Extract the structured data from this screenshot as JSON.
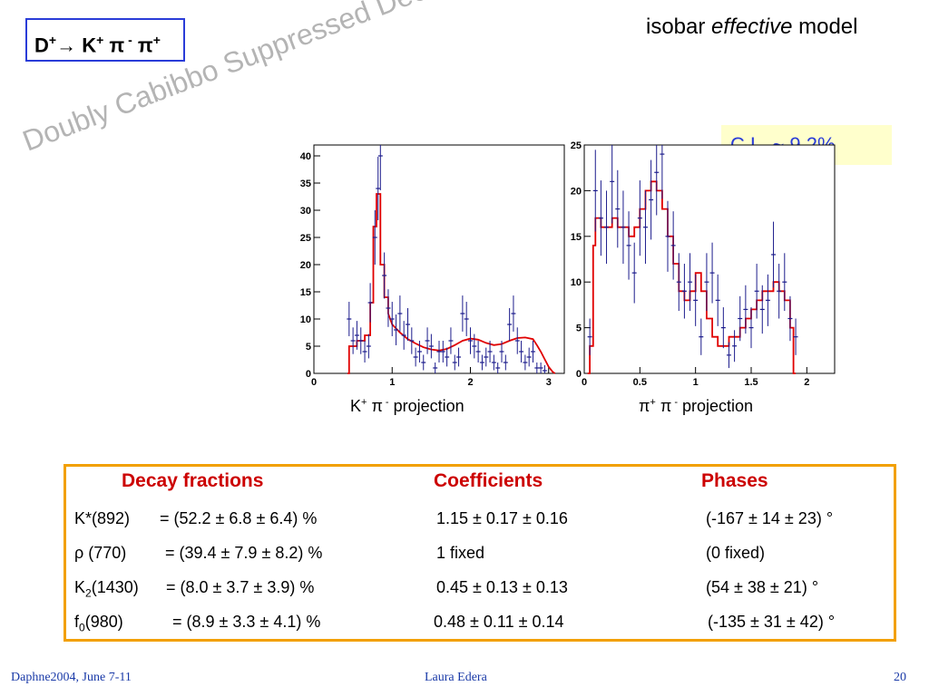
{
  "slide": {
    "decay_box": {
      "D": "D",
      "Dsup": "+",
      "arrow": "→",
      "K": " K",
      "Ksup": "+",
      "pim": " π",
      "pimsup": " -",
      "pip": " π",
      "pipsup": "+"
    },
    "model_title": {
      "pre": "isobar ",
      "em": "effective",
      "post": " model"
    },
    "watermark": "Doubly Cabibbo Suppressed Decay",
    "cl_box": "C.L.  ~ 9.2%",
    "projections": {
      "left": {
        "p1": "K",
        "s1": "+",
        "p2": " π",
        "s2": " -",
        "p3": " projection"
      },
      "right": {
        "p1": "π",
        "s1": "+",
        "p2": " π",
        "s2": " -",
        "p3": "  projection"
      }
    },
    "results": {
      "headers": [
        "Decay fractions",
        "Coefficients",
        "Phases"
      ],
      "rows": [
        {
          "name": "K*(892)",
          "name_sub": "",
          "name_post": "",
          "fraction": "= (52.2  ± 6.8 ± 6.4) %",
          "coefficient": "1.15 ± 0.17 ±  0.16",
          "phase": "(-167 ± 14 ± 23) °"
        },
        {
          "name": "ρ (770)",
          "name_sub": "",
          "name_post": "",
          "fraction": "= (39.4  ± 7.9 ±  8.2) %",
          "coefficient": "1 fixed",
          "phase": "(0 fixed)"
        },
        {
          "name": "K",
          "name_sub": "2",
          "name_post": "(1430)",
          "fraction": "=   (8.0  ± 3.7 ± 3.9) %",
          "coefficient": "0.45 ± 0.13 ± 0.13",
          "phase": "(54 ± 38 ± 21) °"
        },
        {
          "name": "f",
          "name_sub": "0",
          "name_post": "(980)",
          "fraction": "=  (8.9 ± 3.3 ± 4.1) %",
          "coefficient": "0.48 ± 0.11 ± 0.14",
          "phase": "(-135 ± 31 ± 42) °"
        }
      ]
    },
    "footer": {
      "left": "Daphne2004, June 7-11",
      "center": "Laura Edera",
      "right": "20"
    }
  },
  "colors": {
    "frame_blue": "#2a3cd8",
    "header_red": "#cc0000",
    "box_orange": "#f2a000",
    "fit_red": "#e00000",
    "points_blue": "#1c1c8c",
    "footer_blue": "#1a3aa8"
  },
  "chart_data": [
    {
      "type": "scatter",
      "xlim": [
        0,
        3.2
      ],
      "ylim": [
        0,
        42
      ],
      "xticks": [
        0,
        1,
        2,
        3
      ],
      "yticks": [
        0,
        5,
        10,
        15,
        20,
        25,
        30,
        35,
        40
      ],
      "xtick_labels": [
        "0",
        "1",
        "2",
        "3"
      ],
      "ytick_labels": [
        "0",
        "5",
        "10",
        "15",
        "20",
        "25",
        "30",
        "35",
        "40"
      ],
      "points": [
        [
          0.45,
          10
        ],
        [
          0.5,
          6
        ],
        [
          0.55,
          7
        ],
        [
          0.6,
          6
        ],
        [
          0.65,
          4
        ],
        [
          0.7,
          5
        ],
        [
          0.72,
          13
        ],
        [
          0.78,
          25
        ],
        [
          0.82,
          34
        ],
        [
          0.85,
          40
        ],
        [
          0.9,
          18
        ],
        [
          0.95,
          12
        ],
        [
          1.0,
          10
        ],
        [
          1.05,
          8
        ],
        [
          1.1,
          11
        ],
        [
          1.15,
          7
        ],
        [
          1.2,
          9
        ],
        [
          1.25,
          6
        ],
        [
          1.3,
          3
        ],
        [
          1.35,
          4
        ],
        [
          1.4,
          2
        ],
        [
          1.45,
          6
        ],
        [
          1.5,
          5
        ],
        [
          1.55,
          1
        ],
        [
          1.6,
          4
        ],
        [
          1.65,
          4
        ],
        [
          1.7,
          3
        ],
        [
          1.75,
          6
        ],
        [
          1.8,
          2
        ],
        [
          1.85,
          3
        ],
        [
          1.9,
          11
        ],
        [
          1.95,
          10
        ],
        [
          2.0,
          6
        ],
        [
          2.05,
          5
        ],
        [
          2.1,
          4
        ],
        [
          2.15,
          2
        ],
        [
          2.2,
          3
        ],
        [
          2.25,
          4
        ],
        [
          2.3,
          2
        ],
        [
          2.35,
          1
        ],
        [
          2.4,
          4
        ],
        [
          2.45,
          2
        ],
        [
          2.5,
          9
        ],
        [
          2.55,
          11
        ],
        [
          2.6,
          6
        ],
        [
          2.65,
          4
        ],
        [
          2.7,
          2
        ],
        [
          2.75,
          3
        ],
        [
          2.8,
          4
        ],
        [
          2.85,
          1
        ],
        [
          2.9,
          1
        ],
        [
          2.95,
          0.5
        ]
      ],
      "fit": [
        [
          0.43,
          0
        ],
        [
          0.45,
          0
        ],
        [
          0.45,
          5
        ],
        [
          0.55,
          5
        ],
        [
          0.55,
          6
        ],
        [
          0.65,
          6
        ],
        [
          0.65,
          7
        ],
        [
          0.72,
          7
        ],
        [
          0.72,
          13
        ],
        [
          0.76,
          13
        ],
        [
          0.76,
          27
        ],
        [
          0.8,
          27
        ],
        [
          0.8,
          33
        ],
        [
          0.85,
          33
        ],
        [
          0.85,
          20
        ],
        [
          0.9,
          20
        ],
        [
          0.9,
          14
        ],
        [
          0.95,
          14
        ],
        [
          0.95,
          11
        ],
        [
          1.0,
          9
        ],
        [
          1.1,
          7.5
        ],
        [
          1.2,
          6.3
        ],
        [
          1.3,
          5.5
        ],
        [
          1.4,
          4.8
        ],
        [
          1.5,
          4.4
        ],
        [
          1.6,
          4.2
        ],
        [
          1.7,
          4.5
        ],
        [
          1.8,
          5.2
        ],
        [
          1.9,
          6.0
        ],
        [
          2.0,
          6.4
        ],
        [
          2.1,
          6.2
        ],
        [
          2.2,
          5.6
        ],
        [
          2.3,
          5.2
        ],
        [
          2.4,
          5.4
        ],
        [
          2.5,
          6.0
        ],
        [
          2.6,
          6.5
        ],
        [
          2.7,
          6.6
        ],
        [
          2.8,
          6.3
        ],
        [
          2.85,
          5.2
        ],
        [
          2.9,
          4
        ],
        [
          2.95,
          2.6
        ],
        [
          3.0,
          1.2
        ],
        [
          3.05,
          0.3
        ],
        [
          3.08,
          0
        ]
      ]
    },
    {
      "type": "scatter",
      "xlim": [
        0,
        2.25
      ],
      "ylim": [
        0,
        25
      ],
      "xticks": [
        0,
        0.5,
        1,
        1.5,
        2
      ],
      "yticks": [
        0,
        5,
        10,
        15,
        20,
        25
      ],
      "xtick_labels": [
        "0",
        "0.5",
        "1",
        "1.5",
        "2"
      ],
      "ytick_labels": [
        "0",
        "5",
        "10",
        "15",
        "20",
        "25"
      ],
      "points": [
        [
          0.05,
          4
        ],
        [
          0.1,
          20
        ],
        [
          0.15,
          17
        ],
        [
          0.2,
          16
        ],
        [
          0.25,
          21
        ],
        [
          0.3,
          18
        ],
        [
          0.35,
          16
        ],
        [
          0.4,
          14
        ],
        [
          0.45,
          11
        ],
        [
          0.5,
          17
        ],
        [
          0.55,
          16
        ],
        [
          0.6,
          19
        ],
        [
          0.65,
          22
        ],
        [
          0.7,
          24
        ],
        [
          0.75,
          15
        ],
        [
          0.8,
          14
        ],
        [
          0.85,
          10
        ],
        [
          0.9,
          9
        ],
        [
          0.95,
          10
        ],
        [
          1.0,
          8
        ],
        [
          1.05,
          4
        ],
        [
          1.1,
          10
        ],
        [
          1.15,
          11
        ],
        [
          1.2,
          8
        ],
        [
          1.25,
          5
        ],
        [
          1.3,
          2
        ],
        [
          1.35,
          3
        ],
        [
          1.4,
          6
        ],
        [
          1.45,
          7
        ],
        [
          1.5,
          5
        ],
        [
          1.55,
          9
        ],
        [
          1.6,
          7
        ],
        [
          1.65,
          8
        ],
        [
          1.7,
          13
        ],
        [
          1.75,
          9
        ],
        [
          1.8,
          10
        ],
        [
          1.85,
          6
        ],
        [
          1.9,
          4
        ]
      ],
      "fit": [
        [
          0.03,
          0
        ],
        [
          0.05,
          0
        ],
        [
          0.05,
          3
        ],
        [
          0.08,
          3
        ],
        [
          0.08,
          14
        ],
        [
          0.1,
          14
        ],
        [
          0.1,
          17
        ],
        [
          0.15,
          17
        ],
        [
          0.15,
          16
        ],
        [
          0.25,
          16
        ],
        [
          0.25,
          17
        ],
        [
          0.3,
          17
        ],
        [
          0.3,
          16
        ],
        [
          0.4,
          16
        ],
        [
          0.4,
          15
        ],
        [
          0.45,
          15
        ],
        [
          0.45,
          16
        ],
        [
          0.5,
          16
        ],
        [
          0.5,
          18
        ],
        [
          0.55,
          18
        ],
        [
          0.55,
          20
        ],
        [
          0.6,
          20
        ],
        [
          0.6,
          21
        ],
        [
          0.65,
          21
        ],
        [
          0.65,
          20
        ],
        [
          0.7,
          20
        ],
        [
          0.7,
          18
        ],
        [
          0.75,
          18
        ],
        [
          0.75,
          15
        ],
        [
          0.8,
          15
        ],
        [
          0.8,
          12
        ],
        [
          0.85,
          12
        ],
        [
          0.85,
          9
        ],
        [
          0.9,
          9
        ],
        [
          0.9,
          8
        ],
        [
          0.95,
          8
        ],
        [
          0.95,
          9
        ],
        [
          1.0,
          9
        ],
        [
          1.0,
          11
        ],
        [
          1.05,
          11
        ],
        [
          1.05,
          9
        ],
        [
          1.1,
          9
        ],
        [
          1.1,
          6
        ],
        [
          1.15,
          6
        ],
        [
          1.15,
          4
        ],
        [
          1.2,
          4
        ],
        [
          1.2,
          3
        ],
        [
          1.3,
          3
        ],
        [
          1.3,
          4
        ],
        [
          1.4,
          4
        ],
        [
          1.4,
          5
        ],
        [
          1.45,
          5
        ],
        [
          1.45,
          6
        ],
        [
          1.5,
          6
        ],
        [
          1.5,
          7
        ],
        [
          1.55,
          7
        ],
        [
          1.55,
          8
        ],
        [
          1.6,
          8
        ],
        [
          1.6,
          9
        ],
        [
          1.7,
          9
        ],
        [
          1.7,
          10
        ],
        [
          1.75,
          10
        ],
        [
          1.75,
          9
        ],
        [
          1.8,
          9
        ],
        [
          1.8,
          8
        ],
        [
          1.85,
          8
        ],
        [
          1.85,
          5
        ],
        [
          1.88,
          5
        ],
        [
          1.88,
          0
        ],
        [
          1.9,
          0
        ]
      ]
    }
  ]
}
